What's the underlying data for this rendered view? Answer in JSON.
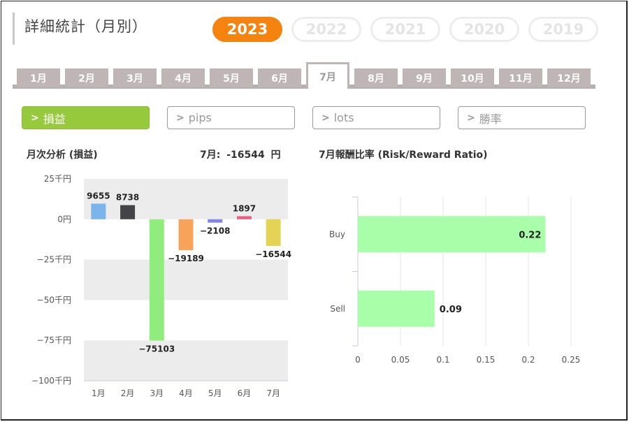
{
  "header": {
    "title": "詳細統計（月別）",
    "years": [
      {
        "label": "2023",
        "active": true
      },
      {
        "label": "2022",
        "active": false
      },
      {
        "label": "2021",
        "active": false
      },
      {
        "label": "2020",
        "active": false
      },
      {
        "label": "2019",
        "active": false
      }
    ]
  },
  "month_tabs": [
    {
      "label": "1月",
      "active": false
    },
    {
      "label": "2月",
      "active": false
    },
    {
      "label": "3月",
      "active": false
    },
    {
      "label": "4月",
      "active": false
    },
    {
      "label": "5月",
      "active": false
    },
    {
      "label": "6月",
      "active": false
    },
    {
      "label": "7月",
      "active": true
    },
    {
      "label": "8月",
      "active": false
    },
    {
      "label": "9月",
      "active": false
    },
    {
      "label": "10月",
      "active": false
    },
    {
      "label": "11月",
      "active": false
    },
    {
      "label": "12月",
      "active": false
    }
  ],
  "metric_buttons": [
    {
      "label": "損益",
      "active": true
    },
    {
      "label": "pips",
      "active": false
    },
    {
      "label": "lots",
      "active": false
    },
    {
      "label": "勝率",
      "active": false
    }
  ],
  "monthly": {
    "title": "月次分析 (損益)",
    "current_label": "7月:",
    "current_value": "-16544",
    "current_unit": "円"
  },
  "rr": {
    "title": "7月報酬比率 (Risk/Reward Ratio)"
  },
  "colors": {
    "accent_orange": "#f5830f",
    "accent_green": "#97c93d",
    "tab_gray": "#bfb5b5"
  },
  "chart_data": [
    {
      "type": "bar",
      "title": "月次分析 (損益)",
      "categories": [
        "1月",
        "2月",
        "3月",
        "4月",
        "5月",
        "6月",
        "7月"
      ],
      "values": [
        9655,
        8738,
        -75103,
        -19189,
        -2108,
        1897,
        -16544
      ],
      "bar_colors": [
        "#7cb5ec",
        "#434348",
        "#90ed7d",
        "#f7a35c",
        "#8085e9",
        "#f15c80",
        "#e4d354"
      ],
      "ylim": [
        -100000,
        25000
      ],
      "yticks": [
        {
          "value": 25000,
          "label": "25千円"
        },
        {
          "value": 0,
          "label": "0円"
        },
        {
          "value": -25000,
          "label": "−25千円"
        },
        {
          "value": -50000,
          "label": "−50千円"
        },
        {
          "value": -75000,
          "label": "−75千円"
        },
        {
          "value": -100000,
          "label": "−100千円"
        }
      ],
      "data_labels": [
        "9655",
        "8738",
        "−75103",
        "−19189",
        "−2108",
        "1897",
        "−16544"
      ],
      "grid": "alternating bands"
    },
    {
      "type": "bar",
      "orientation": "horizontal",
      "title": "7月報酬比率 (Risk/Reward Ratio)",
      "categories": [
        "Buy",
        "Sell"
      ],
      "values": [
        0.22,
        0.09
      ],
      "data_labels": [
        "0.22",
        "0.09"
      ],
      "bar_color": "#a9ffa9",
      "xlim": [
        0,
        0.25
      ],
      "xticks": [
        {
          "value": 0,
          "label": "0"
        },
        {
          "value": 0.05,
          "label": "0.05"
        },
        {
          "value": 0.1,
          "label": "0.1"
        },
        {
          "value": 0.15,
          "label": "0.15"
        },
        {
          "value": 0.2,
          "label": "0.2"
        },
        {
          "value": 0.25,
          "label": "0.25"
        }
      ],
      "grid": true
    }
  ]
}
